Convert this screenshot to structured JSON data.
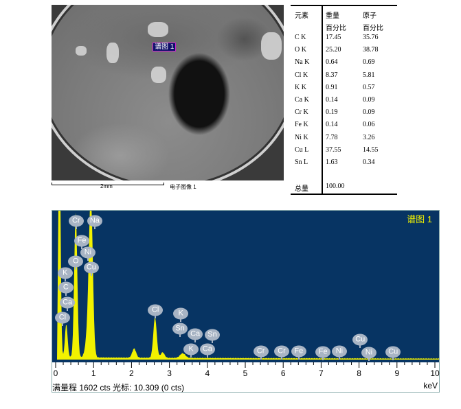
{
  "sem_image": {
    "spot_label": "谱图 1",
    "scale_label": "2mm",
    "caption": "电子图像 1"
  },
  "table": {
    "headers": {
      "element": "元素",
      "weight": "重量",
      "atomic": "原子",
      "weight_unit": "百分比",
      "atomic_unit": "百分比"
    },
    "rows": [
      {
        "element": "C K",
        "weight": "17.45",
        "atomic": "35.76"
      },
      {
        "element": "O K",
        "weight": "25.20",
        "atomic": "38.78"
      },
      {
        "element": "Na K",
        "weight": "0.64",
        "atomic": "0.69"
      },
      {
        "element": "Cl K",
        "weight": "8.37",
        "atomic": "5.81"
      },
      {
        "element": "K K",
        "weight": "0.91",
        "atomic": "0.57"
      },
      {
        "element": "Ca K",
        "weight": "0.14",
        "atomic": "0.09"
      },
      {
        "element": "Cr K",
        "weight": "0.19",
        "atomic": "0.09"
      },
      {
        "element": "Fe K",
        "weight": "0.14",
        "atomic": "0.06"
      },
      {
        "element": "Ni K",
        "weight": "7.78",
        "atomic": "3.26"
      },
      {
        "element": "Cu L",
        "weight": "37.55",
        "atomic": "14.55"
      },
      {
        "element": "Sn L",
        "weight": "1.63",
        "atomic": "0.34"
      }
    ],
    "total_label": "总量",
    "total_value": "100.00"
  },
  "chart_data": {
    "type": "area",
    "title": "谱图 1",
    "xlabel": "keV",
    "xlim": [
      0,
      10
    ],
    "ylim": [
      0,
      1602
    ],
    "x_ticks": [
      "0",
      "1",
      "2",
      "3",
      "4",
      "5",
      "6",
      "7",
      "8",
      "9",
      "10"
    ],
    "status_text": "满量程 1602 cts 光标: 10.309  (0 cts)",
    "colors": {
      "background": "#073463",
      "spectrum": "#f2f200",
      "label": "#a8b4c4",
      "title": "#f2f200"
    },
    "background_cts": 18,
    "peaks": [
      {
        "keV": 0.1,
        "cts": 2500,
        "width": 0.03
      },
      {
        "keV": 0.28,
        "cts": 360,
        "width": 0.035
      },
      {
        "keV": 0.53,
        "cts": 1580,
        "width": 0.04
      },
      {
        "keV": 0.93,
        "cts": 1700,
        "width": 0.05
      },
      {
        "keV": 0.85,
        "cts": 250,
        "width": 0.06
      },
      {
        "keV": 2.07,
        "cts": 100,
        "width": 0.05
      },
      {
        "keV": 2.62,
        "cts": 440,
        "width": 0.045
      },
      {
        "keV": 2.82,
        "cts": 60,
        "width": 0.05
      },
      {
        "keV": 3.35,
        "cts": 50,
        "width": 0.07
      }
    ],
    "element_labels": [
      {
        "el": "Cr",
        "keV": 0.54,
        "cts": 1506
      },
      {
        "el": "Na",
        "keV": 1.03,
        "cts": 1506
      },
      {
        "el": "Fe",
        "keV": 0.69,
        "cts": 1292
      },
      {
        "el": "Ni",
        "keV": 0.85,
        "cts": 1159
      },
      {
        "el": "O",
        "keV": 0.53,
        "cts": 1063
      },
      {
        "el": "Cu",
        "keV": 0.94,
        "cts": 996
      },
      {
        "el": "K",
        "keV": 0.25,
        "cts": 937
      },
      {
        "el": "C",
        "keV": 0.27,
        "cts": 782
      },
      {
        "el": "Ca",
        "keV": 0.31,
        "cts": 620
      },
      {
        "el": "Cl",
        "keV": 0.18,
        "cts": 458
      },
      {
        "el": "Cl",
        "keV": 2.63,
        "cts": 539
      },
      {
        "el": "K",
        "keV": 3.3,
        "cts": 502
      },
      {
        "el": "Sn",
        "keV": 3.28,
        "cts": 332
      },
      {
        "el": "Ca",
        "keV": 3.68,
        "cts": 273
      },
      {
        "el": "Sn",
        "keV": 4.13,
        "cts": 266
      },
      {
        "el": "K",
        "keV": 3.57,
        "cts": 111
      },
      {
        "el": "Ca",
        "keV": 4.0,
        "cts": 111
      },
      {
        "el": "Cr",
        "keV": 5.41,
        "cts": 89
      },
      {
        "el": "Cr",
        "keV": 5.96,
        "cts": 89
      },
      {
        "el": "Fe",
        "keV": 6.41,
        "cts": 89
      },
      {
        "el": "Fe",
        "keV": 7.05,
        "cts": 81
      },
      {
        "el": "Ni",
        "keV": 7.48,
        "cts": 89
      },
      {
        "el": "Cu",
        "keV": 8.03,
        "cts": 214
      },
      {
        "el": "Ni",
        "keV": 8.26,
        "cts": 74
      },
      {
        "el": "Cu",
        "keV": 8.9,
        "cts": 81
      }
    ]
  }
}
